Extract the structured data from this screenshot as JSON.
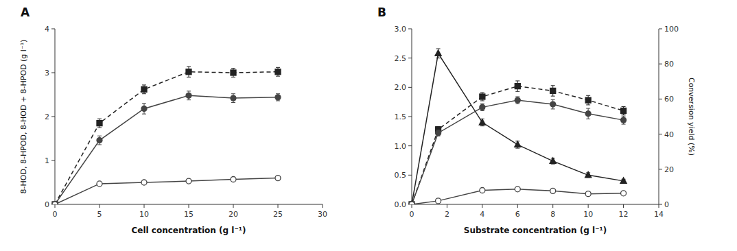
{
  "chart_data": [
    {
      "type": "line",
      "title": "A",
      "xlabel": "Cell concentration (g l⁻¹)",
      "ylabel": "8-HOD, 8-HPOD, 8-HOD + 8-HPOD (g l⁻¹)",
      "xlim": [
        0,
        30
      ],
      "ylim": [
        0,
        4
      ],
      "xticks": [
        0,
        5,
        10,
        15,
        20,
        25,
        30
      ],
      "yticks": [
        0,
        1,
        2,
        3,
        4
      ],
      "grid": false,
      "series": [
        {
          "color": "#222222",
          "marker": "square",
          "line_style": "dashed",
          "x": [
            0,
            5,
            10,
            15,
            20,
            25
          ],
          "values": [
            0,
            1.85,
            2.62,
            3.02,
            3.0,
            3.02
          ],
          "errors": [
            0,
            0.1,
            0.1,
            0.12,
            0.1,
            0.1
          ]
        },
        {
          "color": "#444444",
          "marker": "circle",
          "line_style": "solid",
          "x": [
            0,
            5,
            10,
            15,
            20,
            25
          ],
          "values": [
            0,
            1.46,
            2.18,
            2.48,
            2.42,
            2.44
          ],
          "errors": [
            0,
            0.1,
            0.12,
            0.1,
            0.1,
            0.08
          ]
        },
        {
          "color": "#444444",
          "marker": "open-circle",
          "line_style": "solid",
          "x": [
            0,
            5,
            10,
            15,
            20,
            25
          ],
          "values": [
            0,
            0.47,
            0.5,
            0.53,
            0.57,
            0.6
          ],
          "errors": [
            0,
            0.03,
            0.03,
            0.03,
            0.03,
            0.03
          ]
        }
      ]
    },
    {
      "type": "line",
      "title": "B",
      "xlabel": "Substrate concentration (g l⁻¹)",
      "y2label": "Conversion yield (%)",
      "xlim": [
        0,
        14
      ],
      "ylim": [
        0,
        3.0
      ],
      "y2lim": [
        0,
        100
      ],
      "xticks": [
        0,
        2,
        4,
        6,
        8,
        10,
        12,
        14
      ],
      "yticks": [
        {
          "value": 0,
          "label": "0.0"
        },
        0.5,
        {
          "value": 1,
          "label": "1.0"
        },
        1.5,
        {
          "value": 2,
          "label": "2.0"
        },
        2.5,
        {
          "value": 3,
          "label": "3.0"
        }
      ],
      "y2ticks": [
        0,
        20,
        40,
        60,
        80,
        100
      ],
      "grid": false,
      "series": [
        {
          "color": "#222222",
          "marker": "square",
          "line_style": "dashed",
          "x": [
            0,
            1.5,
            4,
            6,
            8,
            10,
            12
          ],
          "values": [
            0,
            1.28,
            1.84,
            2.02,
            1.94,
            1.78,
            1.6
          ],
          "errors": [
            0,
            0.05,
            0.07,
            0.09,
            0.09,
            0.08,
            0.07
          ]
        },
        {
          "color": "#444444",
          "marker": "circle",
          "line_style": "solid",
          "x": [
            0,
            1.5,
            4,
            6,
            8,
            10,
            12
          ],
          "values": [
            0,
            1.22,
            1.66,
            1.78,
            1.71,
            1.55,
            1.44
          ],
          "errors": [
            0,
            0.05,
            0.06,
            0.06,
            0.08,
            0.09,
            0.07
          ]
        },
        {
          "color": "#222222",
          "marker": "triangle",
          "line_style": "solid",
          "x": [
            0,
            1.5,
            4,
            6,
            8,
            10,
            12
          ],
          "values": [
            0,
            2.58,
            1.4,
            1.02,
            0.74,
            0.5,
            0.4
          ],
          "errors": [
            0,
            0.08,
            0.06,
            0.06,
            0.05,
            0.04,
            0.03
          ]
        },
        {
          "color": "#444444",
          "marker": "open-circle",
          "line_style": "solid",
          "x": [
            0,
            1.5,
            4,
            6,
            8,
            10,
            12
          ],
          "values": [
            0,
            0.06,
            0.24,
            0.26,
            0.23,
            0.18,
            0.19
          ],
          "errors": [
            0,
            0.01,
            0.02,
            0.02,
            0.02,
            0.02,
            0.02
          ]
        }
      ]
    }
  ]
}
